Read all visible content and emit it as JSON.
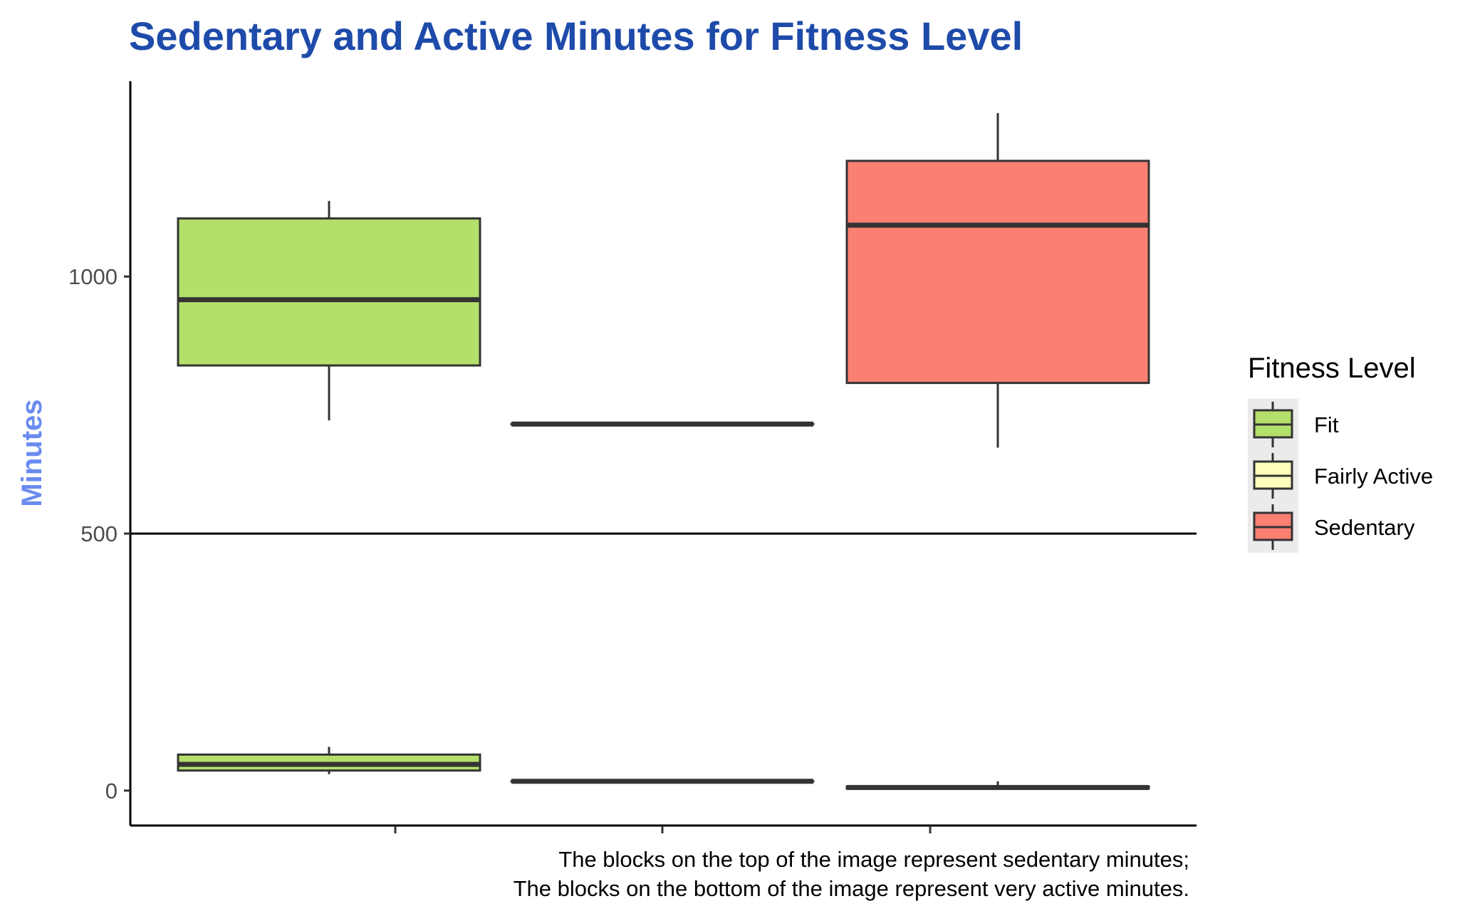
{
  "chart_data": {
    "type": "boxplot",
    "title": "Sedentary and Active Minutes for Fitness Level",
    "xlabel": "",
    "ylabel": "Minutes",
    "ylim": [
      -68,
      1380
    ],
    "yticks": [
      0,
      500,
      1000
    ],
    "hline": 500,
    "categories": [
      "Fit",
      "Fairly Active",
      "Sedentary"
    ],
    "legend": {
      "title": "Fitness Level",
      "position": "right",
      "items": [
        {
          "label": "Fit",
          "color": "#B3E06B"
        },
        {
          "label": "Fairly Active",
          "color": "#FFFFBB"
        },
        {
          "label": "Sedentary",
          "color": "#FA8072"
        }
      ]
    },
    "series": [
      {
        "metric": "sedentary minutes",
        "boxes": [
          {
            "category": "Fit",
            "min": 720,
            "q1": 827,
            "median": 955,
            "q3": 1113,
            "max": 1147
          },
          {
            "category": "Fairly Active",
            "min": 713,
            "q1": 713,
            "median": 713,
            "q3": 713,
            "max": 713
          },
          {
            "category": "Sedentary",
            "min": 667,
            "q1": 793,
            "median": 1100,
            "q3": 1225,
            "max": 1318
          }
        ]
      },
      {
        "metric": "very active minutes",
        "boxes": [
          {
            "category": "Fit",
            "min": 32,
            "q1": 39,
            "median": 51,
            "q3": 70,
            "max": 85
          },
          {
            "category": "Fairly Active",
            "min": 18,
            "q1": 18,
            "median": 18,
            "q3": 18,
            "max": 18
          },
          {
            "category": "Sedentary",
            "min": 4,
            "q1": 4,
            "median": 6,
            "q3": 8,
            "max": 18
          }
        ]
      }
    ],
    "caption": [
      "The blocks on the top of the image represent sedentary minutes;",
      "The blocks on the bottom of the image represent very active minutes."
    ],
    "colors": {
      "title": "#1E4BAA",
      "ylabel": "#6A8CF0",
      "box_outline": "#333333",
      "axis": "#000000",
      "legend_key_bg": "#EBEBEB"
    }
  }
}
